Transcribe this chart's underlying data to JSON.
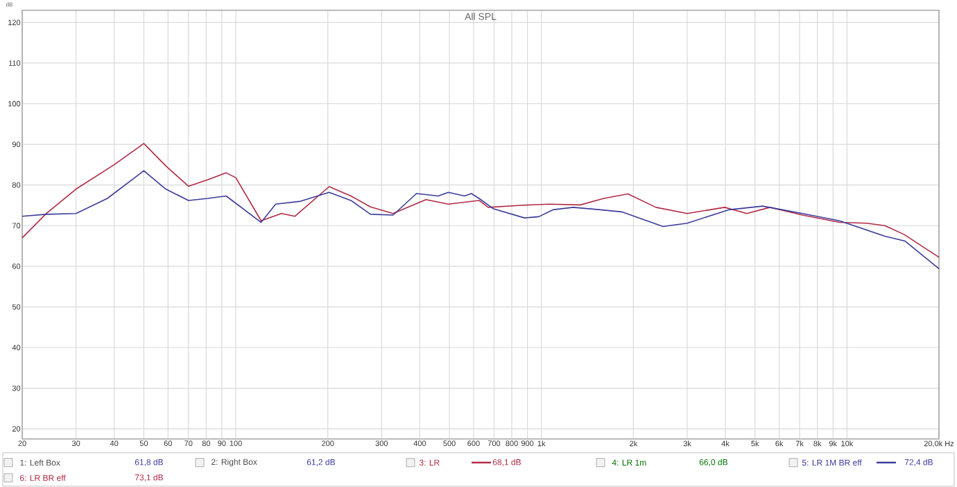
{
  "chart_data": {
    "type": "line",
    "title": "All SPL",
    "ylabel": "dB",
    "log": "x",
    "grid": true,
    "legend": "bottom",
    "line_style": "solid",
    "marker": "none",
    "xlim": [
      20,
      20000
    ],
    "ylim": [
      17.5,
      123
    ],
    "xticks": [
      {
        "value": 20,
        "label": "20"
      },
      {
        "value": 30,
        "label": "30"
      },
      {
        "value": 40,
        "label": "40"
      },
      {
        "value": 50,
        "label": "50"
      },
      {
        "value": 60,
        "label": "60"
      },
      {
        "value": 70,
        "label": "70"
      },
      {
        "value": 80,
        "label": "80"
      },
      {
        "value": 90,
        "label": "90"
      },
      {
        "value": 100,
        "label": "100"
      },
      {
        "value": 200,
        "label": "200"
      },
      {
        "value": 300,
        "label": "300"
      },
      {
        "value": 400,
        "label": "400"
      },
      {
        "value": 500,
        "label": "500"
      },
      {
        "value": 600,
        "label": "600"
      },
      {
        "value": 700,
        "label": "700"
      },
      {
        "value": 800,
        "label": "800"
      },
      {
        "value": 900,
        "label": "900"
      },
      {
        "value": 1000,
        "label": "1k"
      },
      {
        "value": 2000,
        "label": "2k"
      },
      {
        "value": 3000,
        "label": "3k"
      },
      {
        "value": 4000,
        "label": "4k"
      },
      {
        "value": 5000,
        "label": "5k"
      },
      {
        "value": 6000,
        "label": "6k"
      },
      {
        "value": 7000,
        "label": "7k"
      },
      {
        "value": 8000,
        "label": "8k"
      },
      {
        "value": 9000,
        "label": "9k"
      },
      {
        "value": 10000,
        "label": "10k"
      },
      {
        "value": 20000,
        "label": "20,0k Hz"
      }
    ],
    "yticks": [
      20,
      30,
      40,
      50,
      60,
      70,
      80,
      90,
      100,
      110,
      120
    ],
    "series": [
      {
        "name": "3: LR",
        "color": "#b02a44",
        "x": [
          20,
          24,
          30,
          40,
          50,
          59,
          70,
          81,
          93,
          100,
          121,
          141,
          156,
          202,
          238,
          276,
          327,
          419,
          496,
          625,
          670,
          855,
          1060,
          1340,
          1600,
          1920,
          2370,
          3000,
          3980,
          4700,
          5600,
          7150,
          9450,
          11600,
          13300,
          15400,
          20000
        ],
        "values": [
          67,
          73,
          79,
          85,
          90.2,
          84.7,
          79.7,
          81.3,
          83,
          81.8,
          71.2,
          73,
          72.3,
          79.6,
          77.3,
          74.6,
          73,
          76.4,
          75.3,
          76.2,
          74.5,
          75,
          75.3,
          75.1,
          76.7,
          77.8,
          74.5,
          73,
          74.5,
          73,
          74.5,
          72.6,
          70.8,
          70.6,
          70,
          67.8,
          62.2
        ]
      },
      {
        "name": "5: LR 1M BR eff",
        "color": "#3b3b9c",
        "x": [
          20,
          24,
          30,
          38,
          50,
          59,
          70,
          81,
          93,
          121,
          135,
          163,
          202,
          238,
          276,
          327,
          390,
          460,
          496,
          560,
          590,
          625,
          695,
          880,
          980,
          1090,
          1270,
          1560,
          1830,
          2500,
          3000,
          4100,
          5300,
          7150,
          9450,
          13300,
          15500,
          20000
        ],
        "values": [
          72.3,
          72.8,
          73,
          76.7,
          83.5,
          79,
          76.2,
          76.7,
          77.3,
          70.8,
          75.3,
          76,
          78.2,
          76.2,
          72.8,
          72.6,
          77.9,
          77.3,
          78.2,
          77.3,
          77.9,
          76.7,
          74.2,
          71.9,
          72.2,
          73.9,
          74.5,
          73.9,
          73.4,
          69.8,
          70.6,
          73.9,
          74.8,
          73,
          71.2,
          67.4,
          66.2,
          59.4
        ]
      }
    ],
    "annotations": [
      "1: Left Box",
      "61,8 dB",
      "2: Right Box",
      "61,2 dB",
      "68,1 dB",
      "4: LR 1m",
      "66,0 dB",
      "72,4 dB",
      "6: LR BR eff",
      "73,1 dB"
    ]
  }
}
